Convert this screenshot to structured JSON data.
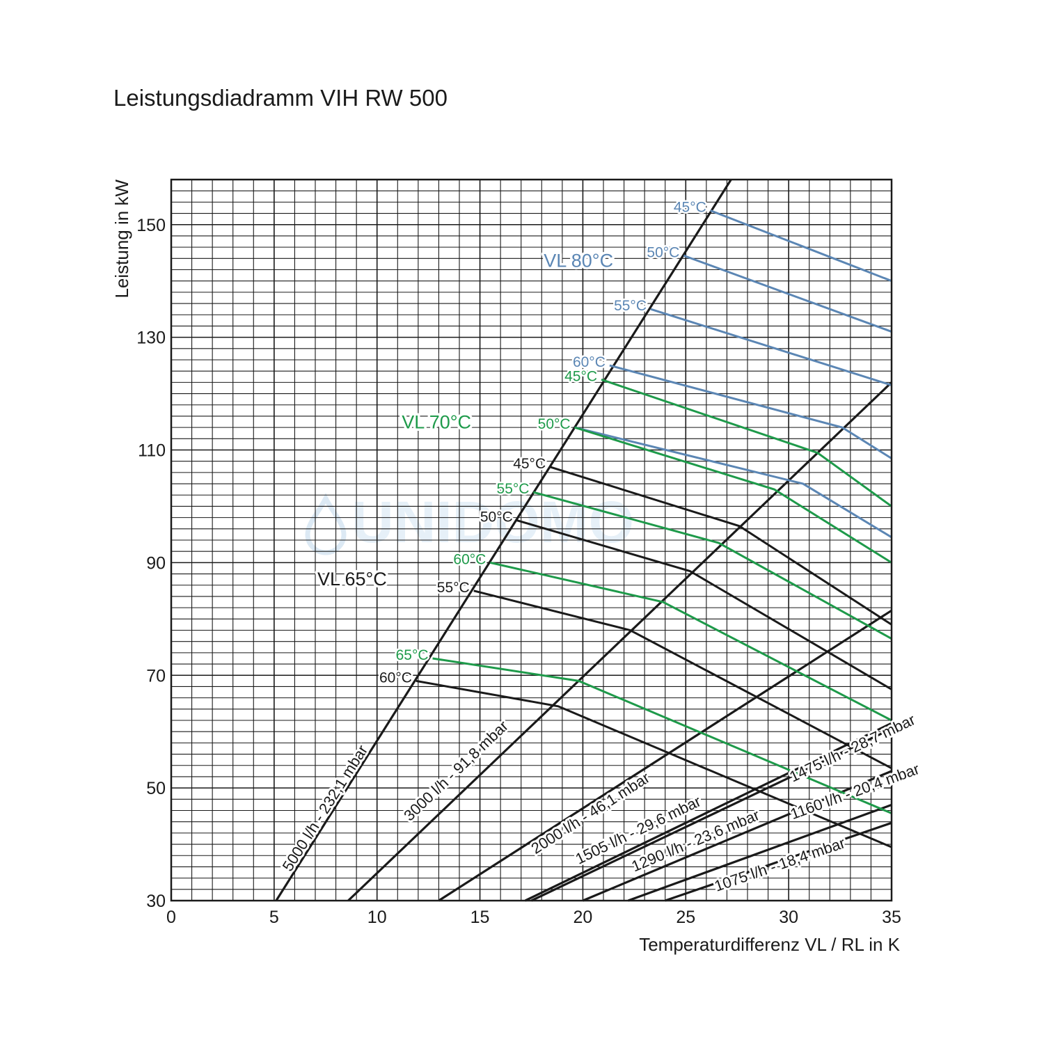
{
  "chart_data": {
    "type": "line",
    "title": "Leistungsdiadramm VIH RW 500",
    "xlabel": "Temperaturdifferenz VL / RL in K",
    "ylabel": "Leistung in kW",
    "xlim": [
      0,
      35
    ],
    "ylim": [
      30,
      158
    ],
    "xticks": [
      0,
      5,
      10,
      15,
      20,
      25,
      30,
      35
    ],
    "yticks": [
      30,
      50,
      70,
      90,
      110,
      130,
      150
    ],
    "grid": true,
    "colors": {
      "vl80": "#5b86b4",
      "vl70": "#1e9a4a",
      "vl65": "#1a1a1a",
      "flow": "#1a1a1a"
    },
    "watermark": "UNIDOMO",
    "group_labels": [
      {
        "text": "VL 80°C",
        "group": "vl80",
        "x": 18.1,
        "y": 142.5
      },
      {
        "text": "VL 70°C",
        "group": "vl70",
        "x": 11.2,
        "y": 113.8
      },
      {
        "text": "VL 65°C",
        "group": "vl65",
        "x": 7.1,
        "y": 86.0
      }
    ],
    "flow_lines": [
      {
        "name": "5000 l/h - 232,1 mbar",
        "label": "5000 l/h - 232,1 mbar",
        "points": [
          [
            5.1,
            30
          ],
          [
            27.2,
            158
          ]
        ]
      },
      {
        "name": "3000 l/h - 91,8 mbar",
        "label": "3000 l/h - 91,8 mbar",
        "points": [
          [
            8.6,
            30
          ],
          [
            35,
            122
          ]
        ]
      },
      {
        "name": "2000 l/h - 46,1 mbar",
        "label": "2000 l/h - 46,1 mbar",
        "points": [
          [
            13.0,
            30
          ],
          [
            35,
            81.5
          ]
        ]
      },
      {
        "name": "1505 l/h - 29,6 mbar",
        "label": "1505 l/h - 29,6 mbar",
        "points": [
          [
            17.2,
            30
          ],
          [
            35,
            61.5
          ]
        ]
      },
      {
        "name": "1475 l/h - 28,7 mbar",
        "label": "1475 l/h - 28,7 mbar",
        "points": [
          [
            17.5,
            30
          ],
          [
            35,
            60.5
          ]
        ]
      },
      {
        "name": "1290 l/h - 23,6 mbar",
        "label": "1290 l/h - 23,6 mbar",
        "points": [
          [
            20.0,
            30
          ],
          [
            35,
            53.0
          ]
        ]
      },
      {
        "name": "1160 l/h - 20,4 mbar",
        "label": "1160 l/h - 20,4 mbar",
        "points": [
          [
            22.2,
            30
          ],
          [
            35,
            47.0
          ]
        ]
      },
      {
        "name": "1075 l/h - 18,4 mbar",
        "label": "1075 l/h - 18,4 mbar",
        "points": [
          [
            24.0,
            30
          ],
          [
            35,
            43.8
          ]
        ]
      }
    ],
    "series": [
      {
        "group": "vl80",
        "label": "45°C",
        "points": [
          [
            26.2,
            152.5
          ],
          [
            35,
            140.0
          ]
        ]
      },
      {
        "group": "vl80",
        "label": "50°C",
        "points": [
          [
            24.9,
            144.5
          ],
          [
            35,
            131.0
          ]
        ]
      },
      {
        "group": "vl80",
        "label": "55°C",
        "points": [
          [
            23.3,
            135.0
          ],
          [
            35,
            121.5
          ]
        ]
      },
      {
        "group": "vl80",
        "label": "60°C",
        "points": [
          [
            21.3,
            125.0
          ],
          [
            32.6,
            114.0
          ],
          [
            35,
            108.5
          ]
        ]
      },
      {
        "group": "vl80",
        "label": "65°C",
        "points": [
          [
            19.6,
            114.0
          ],
          [
            30.7,
            104.0
          ],
          [
            35,
            94.5
          ]
        ]
      },
      {
        "group": "vl70",
        "label": "45°C",
        "points": [
          [
            20.9,
            122.5
          ],
          [
            31.4,
            109.5
          ],
          [
            35,
            100.0
          ]
        ]
      },
      {
        "group": "vl70",
        "label": "50°C",
        "points": [
          [
            19.6,
            114.0
          ],
          [
            29.3,
            103.0
          ],
          [
            35,
            90.0
          ]
        ]
      },
      {
        "group": "vl70",
        "label": "55°C",
        "points": [
          [
            17.6,
            102.5
          ],
          [
            26.6,
            93.5
          ],
          [
            35,
            76.5
          ]
        ]
      },
      {
        "group": "vl70",
        "label": "60°C",
        "points": [
          [
            15.5,
            90.0
          ],
          [
            23.9,
            83.0
          ],
          [
            35,
            62.0
          ]
        ]
      },
      {
        "group": "vl70",
        "label": "65°C",
        "points": [
          [
            12.7,
            73.0
          ],
          [
            19.8,
            69.0
          ],
          [
            35,
            45.5
          ]
        ]
      },
      {
        "group": "vl65",
        "label": "45°C",
        "points": [
          [
            18.4,
            107.0
          ],
          [
            27.6,
            96.5
          ],
          [
            35,
            79.0
          ]
        ]
      },
      {
        "group": "vl65",
        "label": "50°C",
        "points": [
          [
            16.8,
            97.5
          ],
          [
            25.2,
            88.5
          ],
          [
            35,
            67.5
          ]
        ]
      },
      {
        "group": "vl65",
        "label": "55°C",
        "points": [
          [
            14.7,
            85.0
          ],
          [
            22.3,
            78.0
          ],
          [
            35,
            53.5
          ]
        ]
      },
      {
        "group": "vl65",
        "label": "60°C",
        "points": [
          [
            11.9,
            69.0
          ],
          [
            18.8,
            64.5
          ],
          [
            35,
            39.5
          ]
        ]
      }
    ]
  }
}
